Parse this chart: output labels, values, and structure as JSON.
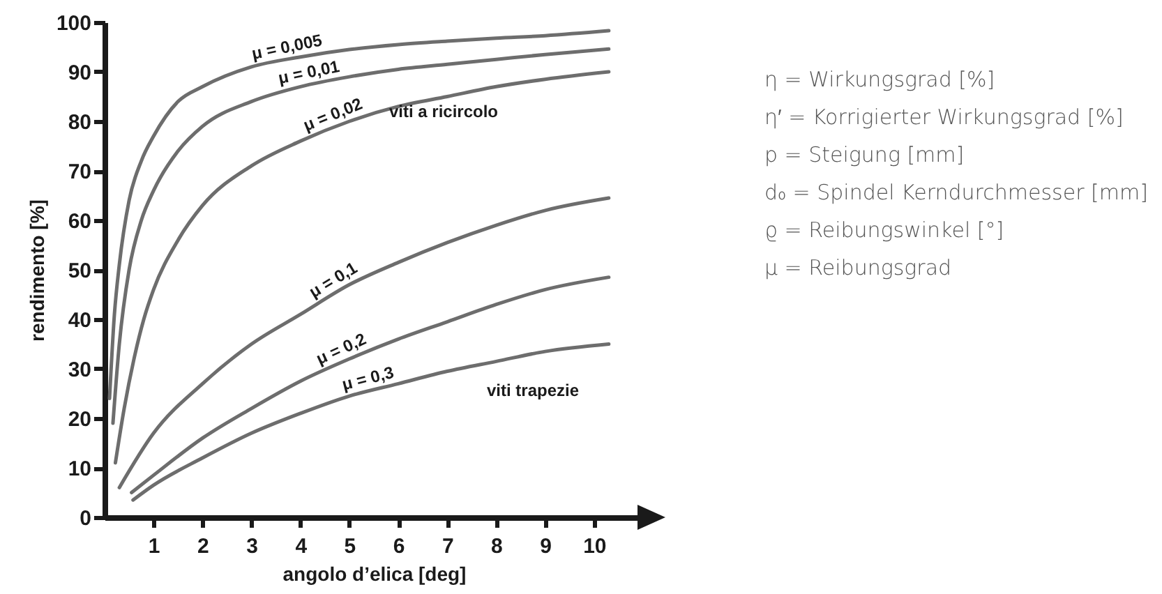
{
  "chart_data": {
    "type": "line",
    "xlabel": "angolo d’elica [deg]",
    "ylabel": "rendimento [%]",
    "xlim": [
      0,
      11
    ],
    "xticks": [
      1,
      2,
      3,
      4,
      5,
      6,
      7,
      8,
      9,
      10
    ],
    "ylim": [
      0,
      100
    ],
    "yticks": [
      0,
      10,
      20,
      30,
      40,
      50,
      60,
      70,
      80,
      90,
      100
    ],
    "grid": false,
    "series": [
      {
        "name": "μ = 0,005",
        "color": "#6d6d6d",
        "x": [
          0.1,
          0.2,
          0.3,
          0.5,
          0.75,
          1,
          1.5,
          2,
          3,
          4,
          5,
          6,
          7,
          8,
          9,
          10.3
        ],
        "values": [
          24,
          41,
          51,
          64,
          72,
          77,
          84,
          87,
          91,
          93,
          94.5,
          95.5,
          96.2,
          96.8,
          97.3,
          98.3
        ]
      },
      {
        "name": "μ = 0,01",
        "color": "#6d6d6d",
        "x": [
          0.17,
          0.3,
          0.5,
          0.75,
          1,
          1.5,
          2,
          3,
          4,
          5,
          6,
          7,
          8,
          9,
          10.3
        ],
        "values": [
          19,
          35,
          50,
          60,
          66,
          74,
          79,
          84,
          87,
          89,
          90.5,
          91.5,
          92.5,
          93.5,
          94.6
        ]
      },
      {
        "name": "μ = 0,02",
        "color": "#6d6d6d",
        "x": [
          0.22,
          0.4,
          0.6,
          0.8,
          1,
          1.5,
          2,
          3,
          4,
          5,
          6,
          7,
          8,
          9,
          10.3
        ],
        "values": [
          11,
          22,
          32,
          40,
          46,
          56,
          63,
          71,
          76,
          80,
          83,
          85,
          87,
          88.5,
          90
        ]
      },
      {
        "name": "μ = 0,1",
        "color": "#6d6d6d",
        "x": [
          0.3,
          1,
          2,
          3,
          4,
          5,
          6,
          7,
          8,
          9,
          10.3
        ],
        "values": [
          6,
          17,
          27,
          35,
          41,
          47,
          51.5,
          55.5,
          59,
          62,
          64.5
        ]
      },
      {
        "name": "μ = 0,2",
        "color": "#6d6d6d",
        "x": [
          0.55,
          1,
          2,
          3,
          4,
          5,
          6,
          7,
          8,
          9,
          10.3
        ],
        "values": [
          5,
          8.5,
          16,
          22,
          27.5,
          32,
          36,
          39.5,
          43,
          46,
          48.5
        ]
      },
      {
        "name": "μ = 0,3",
        "color": "#6d6d6d",
        "x": [
          0.58,
          1,
          2,
          3,
          4,
          5,
          6,
          7,
          8,
          9,
          10.3
        ],
        "values": [
          3.5,
          6.5,
          12,
          17,
          21,
          24.5,
          27,
          29.5,
          31.5,
          33.5,
          35
        ]
      }
    ],
    "annotations": [
      "viti a ricircolo",
      "viti trapezie",
      "η = Wirkungsgrad [%]",
      "η′ = Korrigierter Wirkungsgrad [%]",
      "p = Steigung [mm]",
      "d₀ = Spindel Kerndurchmesser [mm]",
      "ϱ = Reibungswinkel [°]",
      "μ = Reibungsgrad"
    ]
  }
}
